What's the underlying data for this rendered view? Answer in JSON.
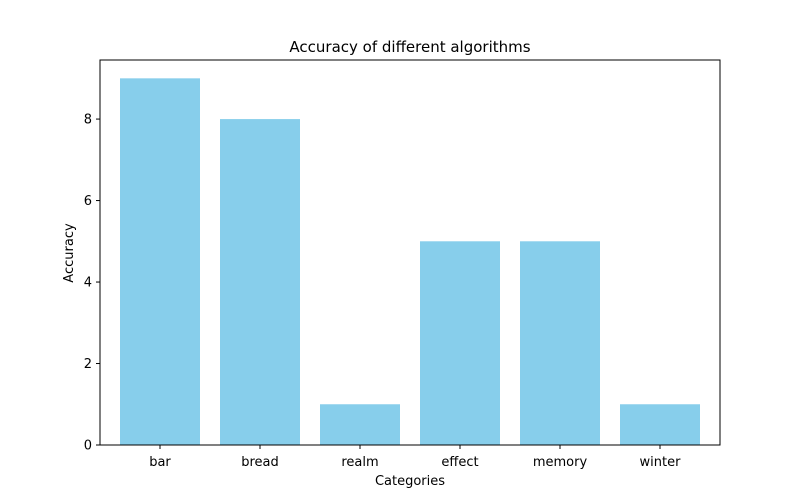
{
  "chart_data": {
    "type": "bar",
    "title": "Accuracy of different algorithms",
    "xlabel": "Categories",
    "ylabel": "Accuracy",
    "categories": [
      "bar",
      "bread",
      "realm",
      "effect",
      "memory",
      "winter"
    ],
    "values": [
      9,
      8,
      1,
      5,
      5,
      1
    ],
    "ylim": [
      0,
      9.45
    ],
    "yticks": [
      0,
      2,
      4,
      6,
      8
    ],
    "grid": false,
    "bar_color": "#87CEEB"
  }
}
